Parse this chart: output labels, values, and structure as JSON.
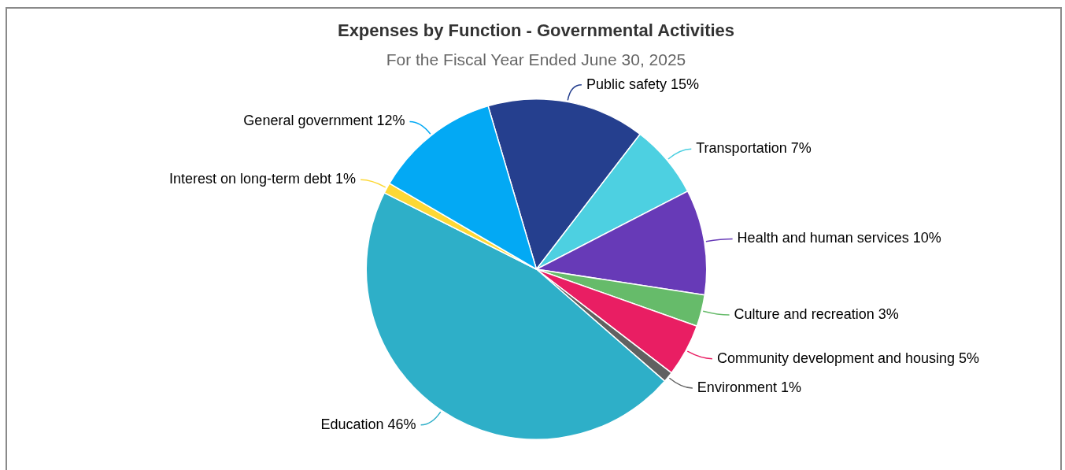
{
  "chart_data": {
    "type": "pie",
    "title": "Expenses by Function - Governmental Activities",
    "subtitle": "For the Fiscal Year Ended June 30, 2025",
    "categories": [
      "Public safety",
      "Transportation",
      "Health and human services",
      "Culture and recreation",
      "Community development and housing",
      "Environment",
      "Education",
      "Interest on long-term debt",
      "General government"
    ],
    "values": [
      15,
      7,
      10,
      3,
      5,
      1,
      46,
      1,
      12
    ],
    "value_labels": [
      "15%",
      "7%",
      "10%",
      "3%",
      "5%",
      "1%",
      "46%",
      "1%",
      "12%"
    ],
    "colors": [
      "#253f8e",
      "#4dd0e1",
      "#673ab7",
      "#66bb6a",
      "#e91e63",
      "#616161",
      "#2eafc8",
      "#fdd835",
      "#03a9f4"
    ],
    "legend": false
  }
}
